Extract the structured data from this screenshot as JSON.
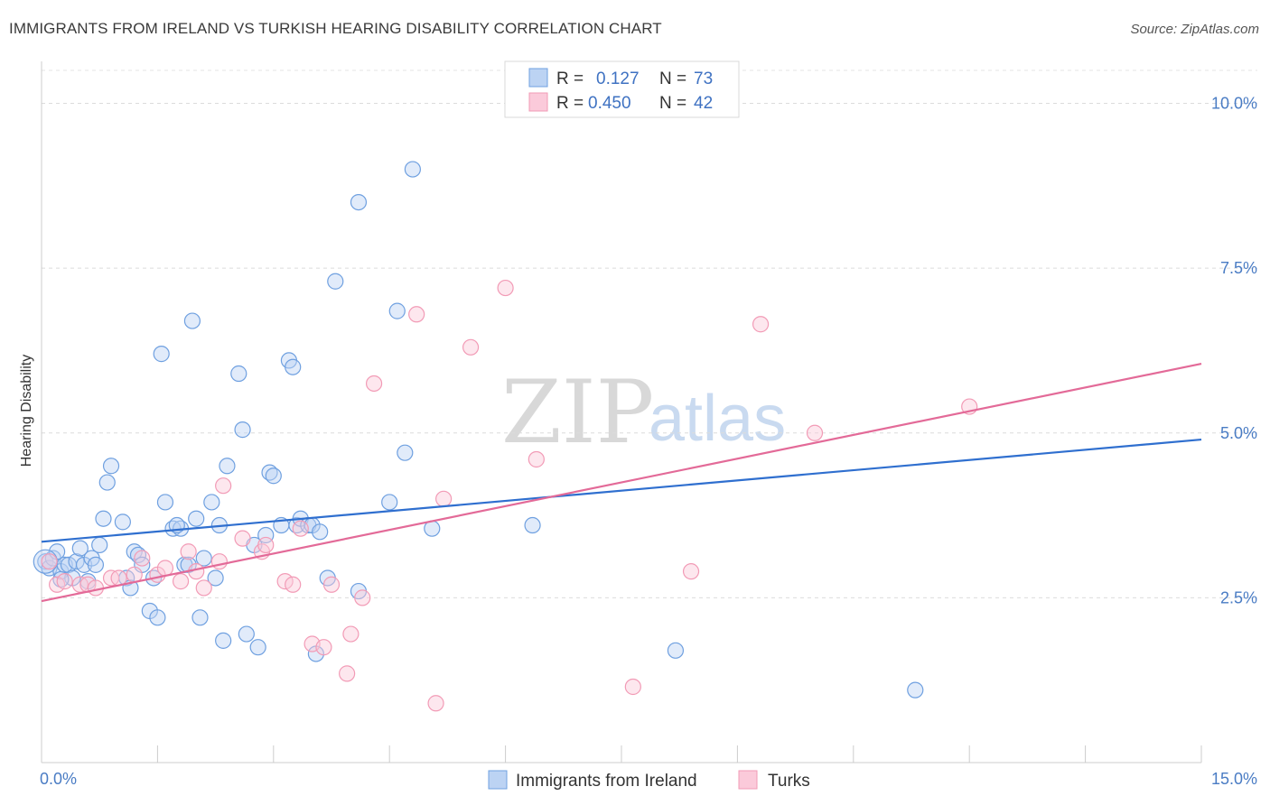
{
  "title": "IMMIGRANTS FROM IRELAND VS TURKISH HEARING DISABILITY CORRELATION CHART",
  "source": "Source: ZipAtlas.com",
  "watermark": {
    "part1": "ZIP",
    "part2": "atlas"
  },
  "chart_data": {
    "type": "scatter",
    "ylabel": "Hearing Disability",
    "xlim": [
      0,
      15
    ],
    "ylim": [
      0,
      10.5
    ],
    "x_tick_labels": [
      "0.0%",
      "15.0%"
    ],
    "x_ticks": [
      0,
      1.5,
      3,
      4.5,
      6,
      7.5,
      9,
      10.5,
      12,
      13.5,
      15
    ],
    "y_ticks": [
      2.5,
      5.0,
      7.5,
      10.0
    ],
    "y_tick_labels": [
      "2.5%",
      "5.0%",
      "7.5%",
      "10.0%"
    ],
    "grid": "horizontal-dashed",
    "legend": {
      "placement": "top-center",
      "rows": [
        {
          "r_label": "R =",
          "r_value": "0.127",
          "n_label": "N =",
          "n_value": "73"
        },
        {
          "r_label": "R =",
          "r_value": "0.450",
          "n_label": "N =",
          "n_value": "42"
        }
      ]
    },
    "series": [
      {
        "name": "Immigrants from Ireland",
        "color": "#6fa0e0",
        "line_color": "#2f6fcf",
        "trend": [
          [
            0,
            3.35
          ],
          [
            15,
            4.9
          ]
        ],
        "points": [
          [
            0.05,
            3.05
          ],
          [
            0.1,
            2.95
          ],
          [
            0.15,
            3.1
          ],
          [
            0.2,
            3.2
          ],
          [
            0.25,
            2.9
          ],
          [
            0.3,
            3.0
          ],
          [
            0.35,
            3.0
          ],
          [
            0.4,
            2.8
          ],
          [
            0.45,
            3.05
          ],
          [
            0.5,
            3.25
          ],
          [
            0.55,
            3.0
          ],
          [
            0.6,
            2.75
          ],
          [
            0.65,
            3.1
          ],
          [
            0.7,
            3.0
          ],
          [
            0.75,
            3.3
          ],
          [
            0.8,
            3.7
          ],
          [
            0.85,
            4.25
          ],
          [
            0.9,
            4.5
          ],
          [
            1.1,
            2.8
          ],
          [
            1.15,
            2.65
          ],
          [
            1.2,
            3.2
          ],
          [
            1.25,
            3.15
          ],
          [
            1.3,
            3.0
          ],
          [
            1.4,
            2.3
          ],
          [
            1.45,
            2.8
          ],
          [
            1.5,
            2.2
          ],
          [
            1.55,
            6.2
          ],
          [
            1.6,
            3.95
          ],
          [
            1.7,
            3.55
          ],
          [
            1.8,
            3.55
          ],
          [
            1.85,
            3.0
          ],
          [
            1.9,
            3.0
          ],
          [
            1.95,
            6.7
          ],
          [
            2.0,
            3.7
          ],
          [
            2.05,
            2.2
          ],
          [
            2.1,
            3.1
          ],
          [
            2.2,
            3.95
          ],
          [
            2.25,
            2.8
          ],
          [
            2.3,
            3.6
          ],
          [
            2.35,
            1.85
          ],
          [
            2.4,
            4.5
          ],
          [
            2.55,
            5.9
          ],
          [
            2.6,
            5.05
          ],
          [
            2.65,
            1.95
          ],
          [
            2.75,
            3.3
          ],
          [
            2.8,
            1.75
          ],
          [
            2.9,
            3.45
          ],
          [
            2.95,
            4.4
          ],
          [
            3.0,
            4.35
          ],
          [
            3.1,
            3.6
          ],
          [
            3.2,
            6.1
          ],
          [
            3.25,
            6.0
          ],
          [
            3.3,
            3.6
          ],
          [
            3.35,
            3.7
          ],
          [
            3.45,
            3.6
          ],
          [
            3.5,
            3.6
          ],
          [
            3.55,
            1.65
          ],
          [
            3.6,
            3.5
          ],
          [
            3.7,
            2.8
          ],
          [
            3.8,
            7.3
          ],
          [
            4.1,
            2.6
          ],
          [
            4.1,
            8.5
          ],
          [
            4.5,
            3.95
          ],
          [
            4.6,
            6.85
          ],
          [
            4.7,
            4.7
          ],
          [
            4.8,
            9.0
          ],
          [
            5.05,
            3.55
          ],
          [
            6.35,
            3.6
          ],
          [
            8.2,
            1.7
          ],
          [
            11.3,
            1.1
          ],
          [
            0.25,
            2.78
          ],
          [
            1.05,
            3.65
          ],
          [
            1.75,
            3.6
          ]
        ]
      },
      {
        "name": "Turks",
        "color": "#f29bb6",
        "line_color": "#e36a98",
        "trend": [
          [
            0,
            2.45
          ],
          [
            15,
            6.05
          ]
        ],
        "points": [
          [
            0.1,
            3.05
          ],
          [
            0.2,
            2.7
          ],
          [
            0.3,
            2.75
          ],
          [
            0.5,
            2.7
          ],
          [
            0.6,
            2.7
          ],
          [
            0.7,
            2.65
          ],
          [
            0.9,
            2.8
          ],
          [
            1.0,
            2.8
          ],
          [
            1.2,
            2.85
          ],
          [
            1.3,
            3.1
          ],
          [
            1.5,
            2.85
          ],
          [
            1.6,
            2.95
          ],
          [
            1.8,
            2.75
          ],
          [
            1.9,
            3.2
          ],
          [
            2.1,
            2.65
          ],
          [
            2.3,
            3.05
          ],
          [
            2.35,
            4.2
          ],
          [
            2.6,
            3.4
          ],
          [
            2.85,
            3.2
          ],
          [
            2.9,
            3.3
          ],
          [
            3.15,
            2.75
          ],
          [
            3.25,
            2.7
          ],
          [
            3.35,
            3.55
          ],
          [
            3.5,
            1.8
          ],
          [
            3.65,
            1.75
          ],
          [
            3.75,
            2.7
          ],
          [
            3.95,
            1.35
          ],
          [
            4.0,
            1.95
          ],
          [
            4.15,
            2.5
          ],
          [
            4.3,
            5.75
          ],
          [
            4.85,
            6.8
          ],
          [
            5.1,
            0.9
          ],
          [
            5.2,
            4.0
          ],
          [
            5.55,
            6.3
          ],
          [
            6.0,
            7.2
          ],
          [
            6.4,
            4.6
          ],
          [
            7.65,
            1.15
          ],
          [
            8.4,
            2.9
          ],
          [
            9.3,
            6.65
          ],
          [
            10.0,
            5.0
          ],
          [
            12.0,
            5.4
          ],
          [
            2.0,
            2.9
          ]
        ]
      }
    ]
  }
}
